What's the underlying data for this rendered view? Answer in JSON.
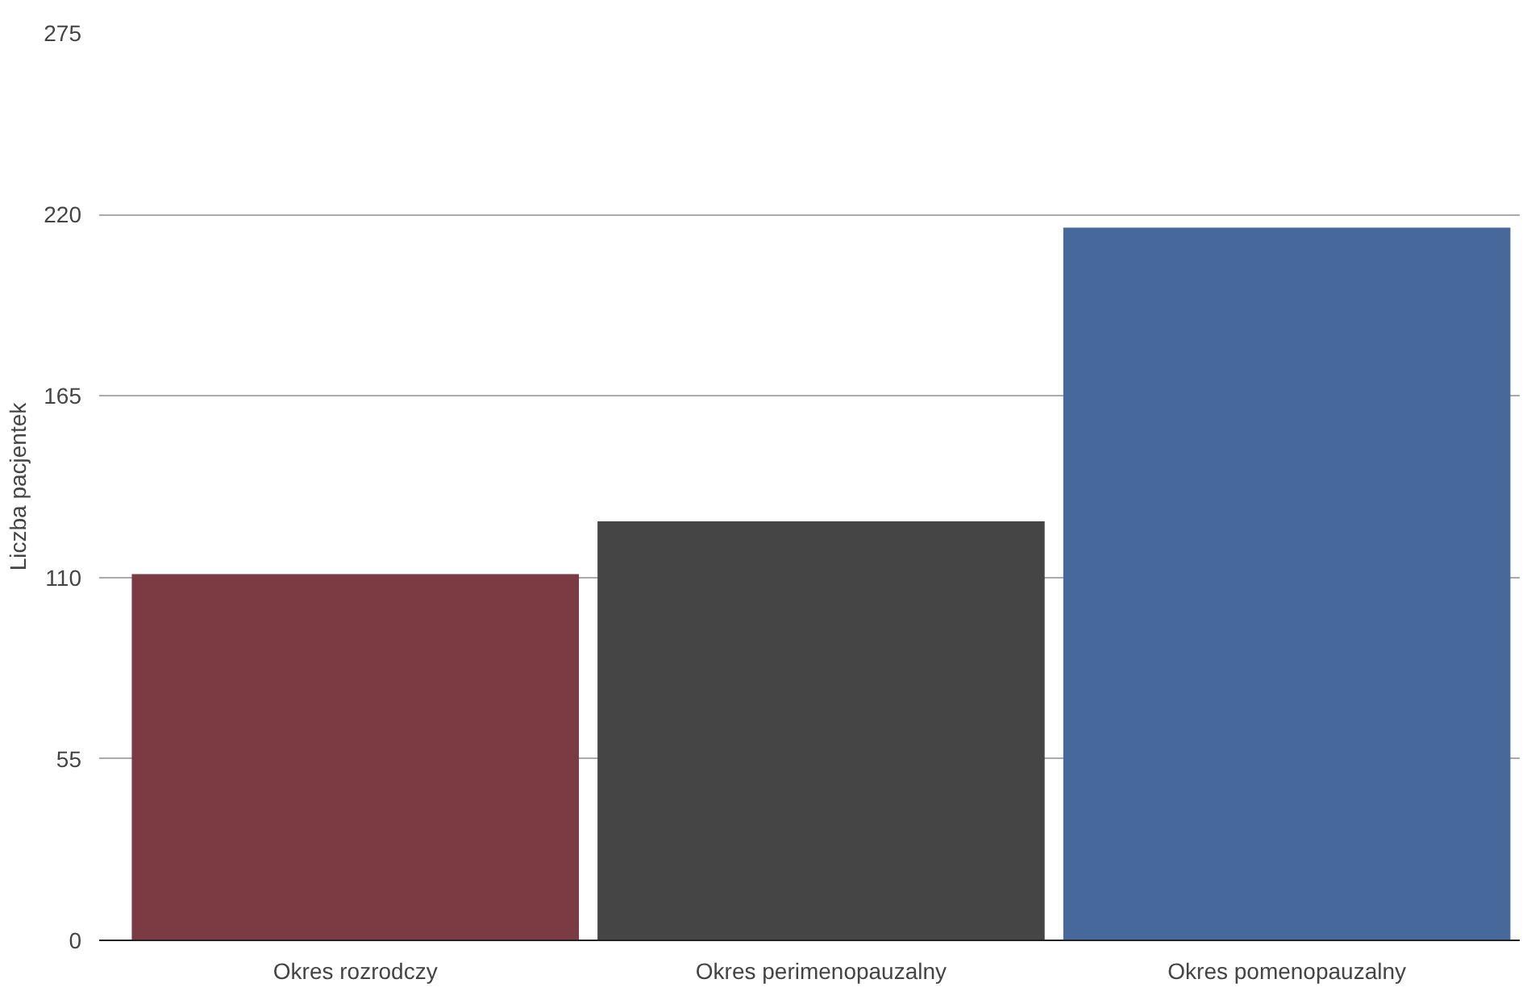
{
  "chart_data": {
    "type": "bar",
    "ylabel": "Liczba pacjentek",
    "categories": [
      "Okres rozrodczy",
      "Okres perimenopauzalny",
      "Okres pomenopauzalny"
    ],
    "values": [
      111,
      127,
      216
    ],
    "colors": [
      "#7b3b42",
      "#454545",
      "#46689a"
    ],
    "ylim": [
      0,
      275
    ],
    "yticks": [
      0,
      55,
      110,
      165,
      220,
      275
    ],
    "grid": "y"
  }
}
